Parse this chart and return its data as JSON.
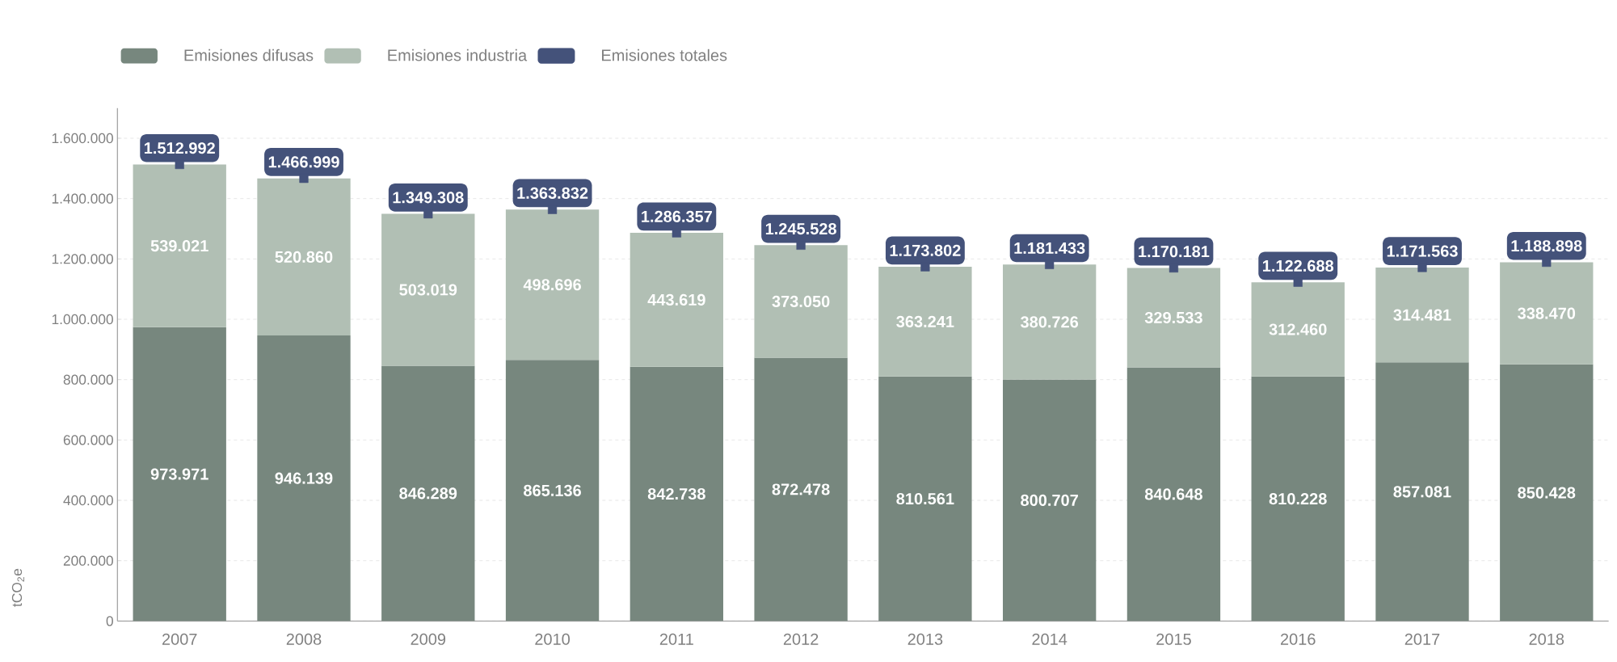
{
  "chart_data": {
    "type": "bar",
    "stacked": true,
    "ylabel": "tCO$_{2}$e",
    "categories": [
      "2007",
      "2008",
      "2009",
      "2010",
      "2011",
      "2012",
      "2013",
      "2014",
      "2015",
      "2016",
      "2017",
      "2018"
    ],
    "series": [
      {
        "name": "Emisiones difusas",
        "color": "#77877e",
        "values": [
          973971,
          946139,
          846289,
          865136,
          842738,
          872478,
          810561,
          800707,
          840648,
          810228,
          857081,
          850428
        ],
        "value_labels": [
          "973.971",
          "946.139",
          "846.289",
          "865.136",
          "842.738",
          "872.478",
          "810.561",
          "800.707",
          "840.648",
          "810.228",
          "857.081",
          "850.428"
        ]
      },
      {
        "name": "Emisiones industria",
        "color": "#b1bfb4",
        "values": [
          539021,
          520860,
          503019,
          498696,
          443619,
          373050,
          363241,
          380726,
          329533,
          312460,
          314481,
          338470
        ],
        "value_labels": [
          "539.021",
          "520.860",
          "503.019",
          "498.696",
          "443.619",
          "373.050",
          "363.241",
          "380.726",
          "329.533",
          "312.460",
          "314.481",
          "338.470"
        ]
      },
      {
        "name": "Emisiones totales",
        "color": "#44527a",
        "type": "scatter",
        "marker": "square",
        "values": [
          1512992,
          1466999,
          1349308,
          1363832,
          1286357,
          1245528,
          1173802,
          1181433,
          1170181,
          1122688,
          1171563,
          1188898
        ],
        "value_labels": [
          "1.512.992",
          "1.466.999",
          "1.349.308",
          "1.363.832",
          "1.286.357",
          "1.245.528",
          "1.173.802",
          "1.181.433",
          "1.170.181",
          "1.122.688",
          "1.171.563",
          "1.188.898"
        ]
      }
    ],
    "ylim": [
      0,
      1700000
    ],
    "yticks": [
      {
        "value": 0,
        "label": "0"
      },
      {
        "value": 200000,
        "label": "200.000"
      },
      {
        "value": 400000,
        "label": "400.000"
      },
      {
        "value": 600000,
        "label": "600.000"
      },
      {
        "value": 800000,
        "label": "800.000"
      },
      {
        "value": 1000000,
        "label": "1.000.000"
      },
      {
        "value": 1200000,
        "label": "1.200.000"
      },
      {
        "value": 1400000,
        "label": "1.400.000"
      },
      {
        "value": 1600000,
        "label": "1.600.000"
      }
    ],
    "grid": "y",
    "legend": "top left"
  }
}
